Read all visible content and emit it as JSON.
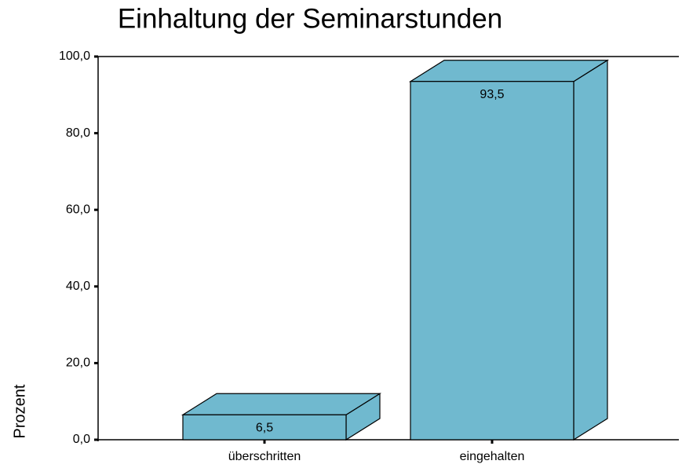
{
  "chart_data": {
    "type": "bar3d",
    "title": "Einhaltung der Seminarstunden",
    "y_label": "Prozent",
    "categories": [
      "überschritten",
      "eingehalten"
    ],
    "values": [
      6.5,
      93.5
    ],
    "value_labels": [
      "6,5",
      "93,5"
    ],
    "color": "#70b9cf",
    "ylim": [
      0,
      100
    ],
    "yticks": [
      {
        "value": 0,
        "label": "0,0"
      },
      {
        "value": 20,
        "label": "20,0"
      },
      {
        "value": 40,
        "label": "40,0"
      },
      {
        "value": 60,
        "label": "60,0"
      },
      {
        "value": 80,
        "label": "80,0"
      },
      {
        "value": 100,
        "label": "100,0"
      }
    ]
  }
}
